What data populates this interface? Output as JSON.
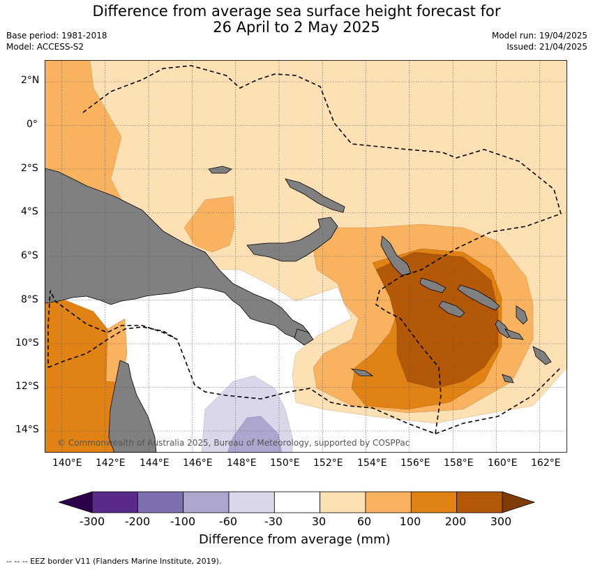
{
  "title": {
    "line1": "Difference from average sea surface height forecast for",
    "line2": "26 April to 2 May 2025"
  },
  "meta": {
    "base_period": "Base period: 1981-2018",
    "model": "Model: ACCESS-S2",
    "model_run": "Model run: 19/04/2025",
    "issued": "Issued: 21/04/2025"
  },
  "axes": {
    "lat_labels": [
      "2°N",
      "0°",
      "2°S",
      "4°S",
      "6°S",
      "8°S",
      "10°S",
      "12°S",
      "14°S"
    ],
    "lon_labels": [
      "140°E",
      "142°E",
      "144°E",
      "146°E",
      "148°E",
      "150°E",
      "152°E",
      "154°E",
      "156°E",
      "158°E",
      "160°E",
      "162°E"
    ]
  },
  "copyright": "© Commonwealth of Australia 2025, Bureau of Meteorology, supported by COSPPac",
  "colorbar": {
    "labels": [
      "-300",
      "-200",
      "-100",
      "-60",
      "-30",
      "30",
      "60",
      "100",
      "200",
      "300"
    ],
    "colors": [
      "#5a2a8a",
      "#7e6fae",
      "#aea6cf",
      "#d8d8ea",
      "#ffffff",
      "#fde0b4",
      "#f9b360",
      "#e08214",
      "#b35806"
    ],
    "under_color": "#2d004b",
    "over_color": "#7f3b08",
    "title": "Difference from average (mm)"
  },
  "footer": "-- -- -- EEZ border V11 (Flanders Marine Institute, 2019).",
  "colors": {
    "land": "#808080",
    "grid": "#555555",
    "eez": "#000000"
  }
}
